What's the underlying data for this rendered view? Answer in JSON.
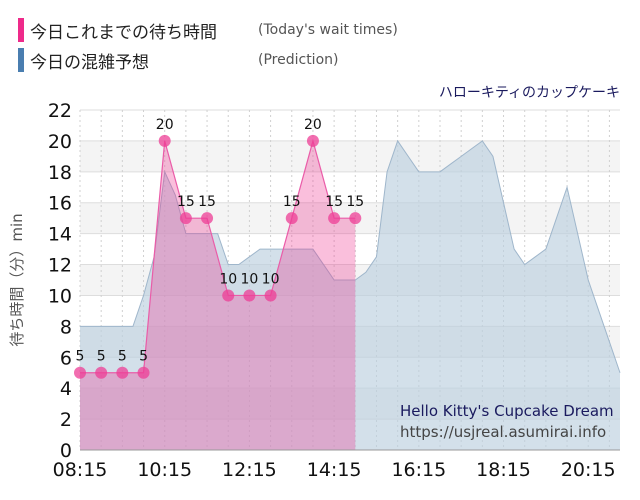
{
  "legend": {
    "today": {
      "label": "今日これまでの待ち時間",
      "sub": "(Today's wait times)",
      "color": "#ee2a8a"
    },
    "prediction": {
      "label": "今日の混雑予想",
      "sub": "(Prediction)",
      "color": "#4a7eb0"
    }
  },
  "attraction_name": "ハローキティのカップケーキ",
  "watermark": {
    "title": "Hello Kitty's Cupcake Dream",
    "url": "https://usjreal.asumirai.info"
  },
  "chart_data": {
    "type": "area",
    "ylabel": "待ち時間（分）min",
    "ylim": [
      0,
      22
    ],
    "yticks": [
      0,
      2,
      4,
      6,
      8,
      10,
      12,
      14,
      16,
      18,
      20,
      22
    ],
    "xlim": [
      "08:15",
      "21:00"
    ],
    "xticks": [
      "08:15",
      "10:15",
      "12:15",
      "14:15",
      "16:15",
      "18:15",
      "20:15"
    ],
    "grid": true,
    "series": [
      {
        "name": "今日これまでの待ち時間",
        "color": "#ee2a8a",
        "times": [
          "08:15",
          "08:45",
          "09:15",
          "09:45",
          "10:15",
          "10:45",
          "11:15",
          "11:45",
          "12:15",
          "12:45",
          "13:15",
          "13:45",
          "14:15",
          "14:45"
        ],
        "values": [
          5,
          5,
          5,
          5,
          20,
          15,
          15,
          10,
          10,
          10,
          15,
          20,
          15,
          15
        ]
      },
      {
        "name": "今日の混雑予想",
        "color": "#a9bfd3",
        "times": [
          "08:15",
          "08:30",
          "09:00",
          "09:15",
          "09:30",
          "09:45",
          "10:00",
          "10:15",
          "10:30",
          "10:45",
          "11:00",
          "11:15",
          "11:30",
          "11:45",
          "12:00",
          "12:15",
          "12:30",
          "12:45",
          "13:00",
          "13:15",
          "13:30",
          "13:45",
          "14:00",
          "14:15",
          "14:30",
          "14:45",
          "15:00",
          "15:15",
          "15:30",
          "15:45",
          "16:00",
          "16:15",
          "16:30",
          "16:45",
          "17:00",
          "17:15",
          "17:30",
          "17:45",
          "18:00",
          "18:15",
          "18:30",
          "18:45",
          "19:00",
          "19:15",
          "19:30",
          "19:45",
          "20:00",
          "20:15",
          "20:30",
          "20:45",
          "21:00"
        ],
        "values": [
          8,
          8,
          8,
          8,
          8,
          10,
          12.5,
          18,
          16.5,
          14,
          14,
          14,
          14,
          12,
          12,
          12.5,
          13,
          13,
          13,
          13,
          13,
          13,
          12,
          11,
          11,
          11,
          11.5,
          12.5,
          18,
          20,
          19,
          18,
          18,
          18,
          18.5,
          19,
          19.5,
          20,
          19,
          16,
          13,
          12,
          12.5,
          13,
          15,
          17,
          14,
          11,
          9,
          7,
          5
        ]
      }
    ]
  }
}
